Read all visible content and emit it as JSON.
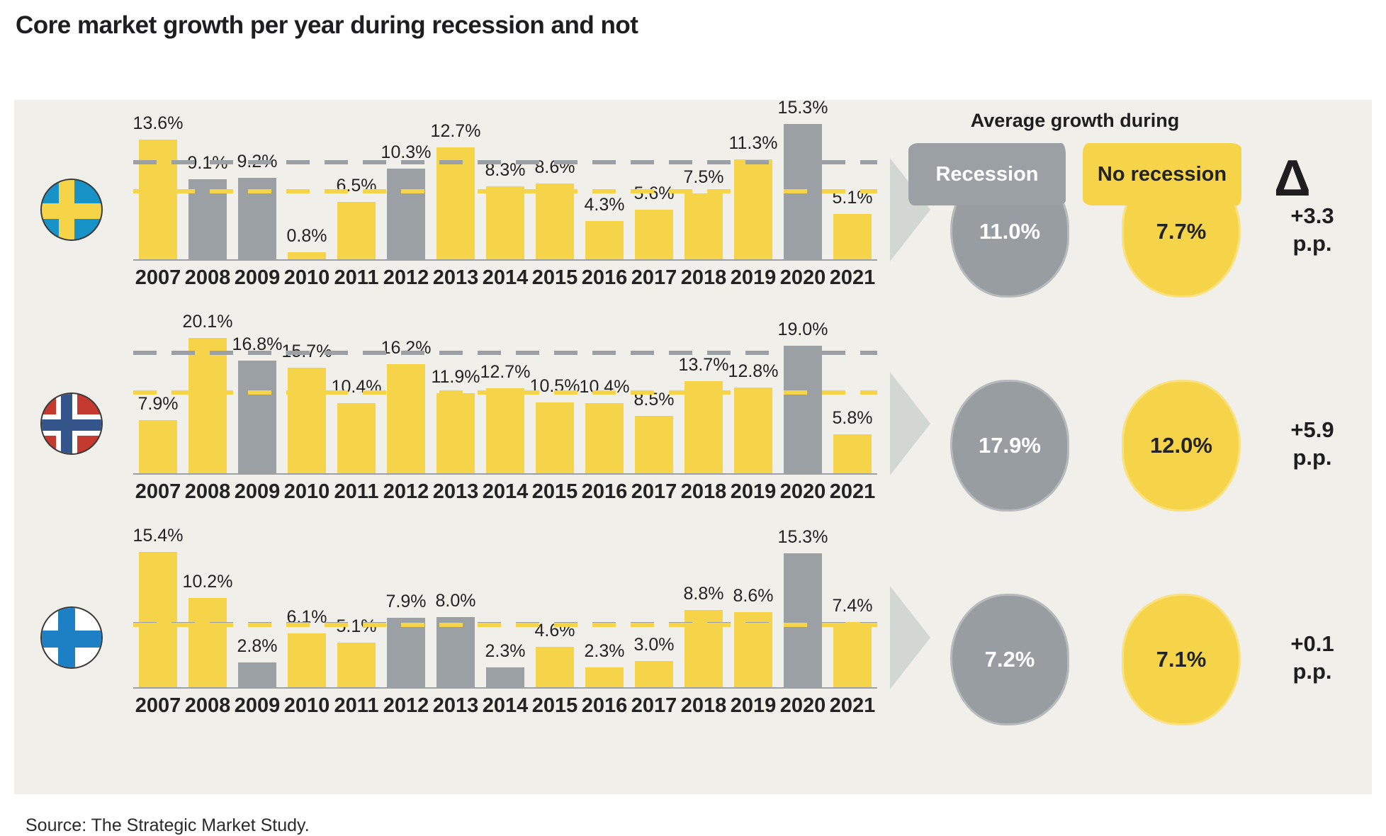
{
  "title": "Core market growth per year during recession and not",
  "source": "Source: The Strategic Market Study.",
  "unit": "%",
  "legend": {
    "heading": "Average growth during",
    "recession_label": "Recession",
    "no_recession_label": "No recession",
    "delta_symbol": "Δ"
  },
  "colors": {
    "recession_gray": "#9aa0a3",
    "no_recession_yellow": "#f6d44a",
    "panel_background": "#f1efe9",
    "arrow_gray": "#d3d7d2",
    "text_dark": "#232323"
  },
  "chart_data": [
    {
      "type": "bar",
      "country": "Sweden",
      "flag": "sweden-flag",
      "categories": [
        "2007",
        "2008",
        "2009",
        "2010",
        "2011",
        "2012",
        "2013",
        "2014",
        "2015",
        "2016",
        "2017",
        "2018",
        "2019",
        "2020",
        "2021"
      ],
      "values": [
        13.6,
        9.1,
        9.2,
        0.8,
        6.5,
        10.3,
        12.7,
        8.3,
        8.6,
        4.3,
        5.6,
        7.5,
        11.3,
        15.3,
        5.1
      ],
      "recession_years": [
        "2008",
        "2009",
        "2012",
        "2020"
      ],
      "avg_recession": 11.0,
      "avg_no_recession": 7.7,
      "avg_recession_label": "11.0%",
      "avg_no_recession_label": "7.7%",
      "delta_value": "+3.3",
      "delta_unit": "p.p."
    },
    {
      "type": "bar",
      "country": "Norway",
      "flag": "norway-flag",
      "categories": [
        "2007",
        "2008",
        "2009",
        "2010",
        "2011",
        "2012",
        "2013",
        "2014",
        "2015",
        "2016",
        "2017",
        "2018",
        "2019",
        "2020",
        "2021"
      ],
      "values": [
        7.9,
        20.1,
        16.8,
        15.7,
        10.4,
        16.2,
        11.9,
        12.7,
        10.5,
        10.4,
        8.5,
        13.7,
        12.8,
        19.0,
        5.8
      ],
      "recession_years": [
        "2009",
        "2020"
      ],
      "avg_recession": 17.9,
      "avg_no_recession": 12.0,
      "avg_recession_label": "17.9%",
      "avg_no_recession_label": "12.0%",
      "delta_value": "+5.9",
      "delta_unit": "p.p."
    },
    {
      "type": "bar",
      "country": "Finland",
      "flag": "finland-flag",
      "categories": [
        "2007",
        "2008",
        "2009",
        "2010",
        "2011",
        "2012",
        "2013",
        "2014",
        "2015",
        "2016",
        "2017",
        "2018",
        "2019",
        "2020",
        "2021"
      ],
      "values": [
        15.4,
        10.2,
        2.8,
        6.1,
        5.1,
        7.9,
        8.0,
        2.3,
        4.6,
        2.3,
        3.0,
        8.8,
        8.6,
        15.3,
        7.4
      ],
      "recession_years": [
        "2009",
        "2012",
        "2013",
        "2014",
        "2020"
      ],
      "avg_recession": 7.2,
      "avg_no_recession": 7.1,
      "avg_recession_label": "7.2%",
      "avg_no_recession_label": "7.1%",
      "delta_value": "+0.1",
      "delta_unit": "p.p."
    }
  ]
}
